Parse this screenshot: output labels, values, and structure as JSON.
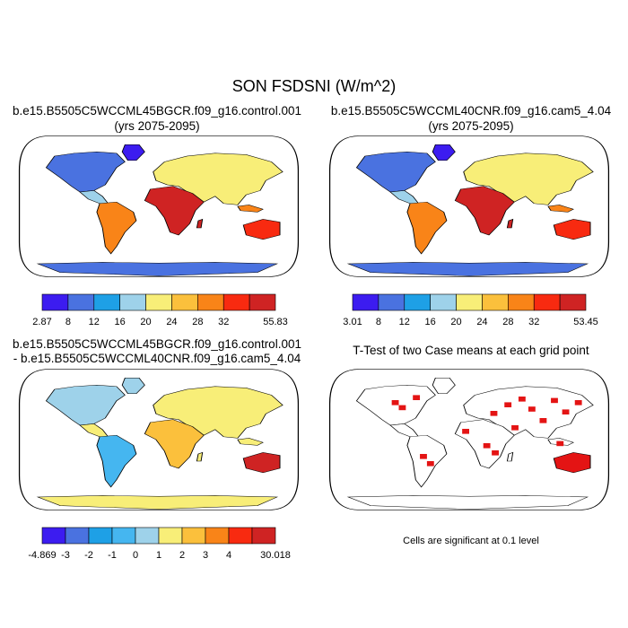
{
  "title": "SON FSDSNI (W/m^2)",
  "panels": [
    {
      "id": "case1",
      "title_line1": "b.e15.B5505C5WCCML45BGCR.f09_g16.control.001",
      "title_line2": "(yrs 2075-2095)",
      "colorbar": {
        "labels": [
          "2.87",
          "8",
          "12",
          "16",
          "20",
          "24",
          "28",
          "32",
          "55.83"
        ],
        "colors": [
          "#3c1cf0",
          "#4a72e0",
          "#1ea0e6",
          "#9ed2ea",
          "#f8ee78",
          "#fbc03c",
          "#f98418",
          "#f82a10",
          "#cf2323"
        ]
      }
    },
    {
      "id": "case2",
      "title_line1": "b.e15.B5505C5WCCML40CNR.f09_g16.cam5_4.04",
      "title_line2": "(yrs 2075-2095)",
      "colorbar": {
        "labels": [
          "3.01",
          "8",
          "12",
          "16",
          "20",
          "24",
          "28",
          "32",
          "53.45"
        ],
        "colors": [
          "#3c1cf0",
          "#4a72e0",
          "#1ea0e6",
          "#9ed2ea",
          "#f8ee78",
          "#fbc03c",
          "#f98418",
          "#f82a10",
          "#cf2323"
        ]
      }
    },
    {
      "id": "difference",
      "title_line1": "b.e15.B5505C5WCCML45BGCR.f09_g16.control.001",
      "title_line2": "- b.e15.B5505C5WCCML40CNR.f09_g16.cam5_4.04",
      "colorbar": {
        "labels": [
          "-4.869",
          "-3",
          "-2",
          "-1",
          "0",
          "1",
          "2",
          "3",
          "4",
          "30.018"
        ],
        "colors": [
          "#3c1cf0",
          "#4a72e0",
          "#1ea0e6",
          "#45b6f0",
          "#9ed2ea",
          "#f8ee78",
          "#fbc03c",
          "#f98418",
          "#f82a10",
          "#cf2323"
        ]
      }
    },
    {
      "id": "ttest",
      "title_line1": "T-Test of two Case means at each grid point",
      "note": "Cells are significant at 0.1 level",
      "significance_color": "#e41414"
    }
  ],
  "colors": {
    "ocean": "#ffffff",
    "coastline": "#000000"
  }
}
